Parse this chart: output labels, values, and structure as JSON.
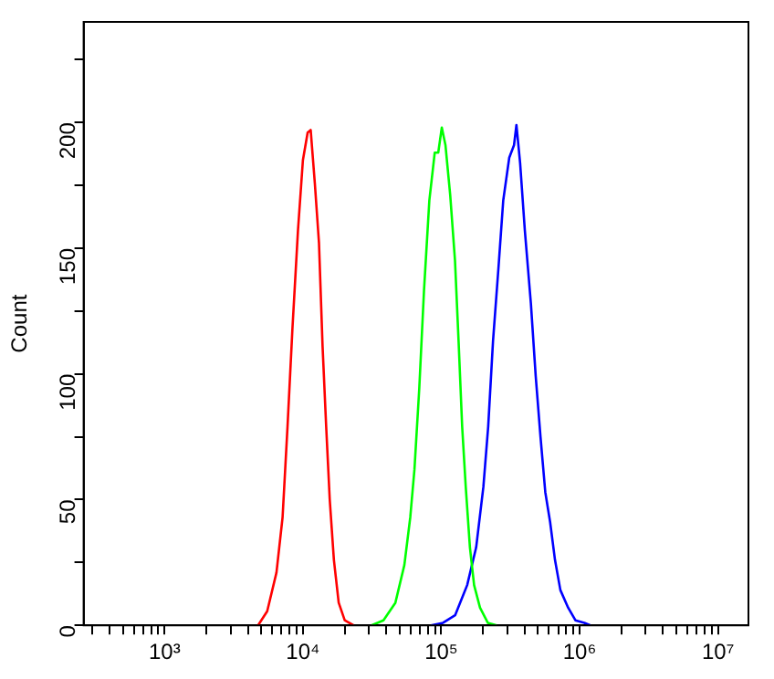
{
  "chart_data": {
    "type": "line",
    "ylabel": "Count",
    "log": "x",
    "grid": false,
    "legend": false,
    "marker": "none",
    "line_style": "solid",
    "xlim": [
      260,
      16600000
    ],
    "ylim": [
      0,
      240
    ],
    "xticks": [
      {
        "value": 300,
        "label": null
      },
      {
        "value": 400,
        "label": null
      },
      {
        "value": 500,
        "label": null
      },
      {
        "value": 600,
        "label": null
      },
      {
        "value": 700,
        "label": null
      },
      {
        "value": 800,
        "label": null
      },
      {
        "value": 900,
        "label": null
      },
      {
        "value": 1000,
        "label": "10³"
      },
      {
        "value": 2000,
        "label": null
      },
      {
        "value": 3000,
        "label": null
      },
      {
        "value": 4000,
        "label": null
      },
      {
        "value": 5000,
        "label": null
      },
      {
        "value": 6000,
        "label": null
      },
      {
        "value": 7000,
        "label": null
      },
      {
        "value": 8000,
        "label": null
      },
      {
        "value": 9000,
        "label": null
      },
      {
        "value": 10000,
        "label": "10⁴"
      },
      {
        "value": 20000,
        "label": null
      },
      {
        "value": 30000,
        "label": null
      },
      {
        "value": 40000,
        "label": null
      },
      {
        "value": 50000,
        "label": null
      },
      {
        "value": 60000,
        "label": null
      },
      {
        "value": 70000,
        "label": null
      },
      {
        "value": 80000,
        "label": null
      },
      {
        "value": 90000,
        "label": null
      },
      {
        "value": 100000,
        "label": "10⁵"
      },
      {
        "value": 200000,
        "label": null
      },
      {
        "value": 300000,
        "label": null
      },
      {
        "value": 400000,
        "label": null
      },
      {
        "value": 500000,
        "label": null
      },
      {
        "value": 600000,
        "label": null
      },
      {
        "value": 700000,
        "label": null
      },
      {
        "value": 800000,
        "label": null
      },
      {
        "value": 900000,
        "label": null
      },
      {
        "value": 1000000,
        "label": "10⁶"
      },
      {
        "value": 2000000,
        "label": null
      },
      {
        "value": 3000000,
        "label": null
      },
      {
        "value": 4000000,
        "label": null
      },
      {
        "value": 5000000,
        "label": null
      },
      {
        "value": 6000000,
        "label": null
      },
      {
        "value": 7000000,
        "label": null
      },
      {
        "value": 8000000,
        "label": null
      },
      {
        "value": 9000000,
        "label": null
      },
      {
        "value": 10000000,
        "label": "10⁷"
      }
    ],
    "yticks": [
      0,
      {
        "value": 25,
        "label": null
      },
      50,
      {
        "value": 75,
        "label": null
      },
      100,
      {
        "value": 125,
        "label": null
      },
      150,
      {
        "value": 175,
        "label": null
      },
      200,
      {
        "value": 225,
        "label": null
      }
    ],
    "series": [
      {
        "color": "#ff0000",
        "x": [
          4740,
          5520,
          6440,
          7130,
          7740,
          8400,
          9210,
          10000,
          10820,
          11380,
          12190,
          13070,
          13870,
          14730,
          15630,
          16750,
          18140,
          20050,
          23240
        ],
        "values": [
          0,
          5.6,
          21,
          43,
          79,
          118,
          157,
          185,
          196,
          197,
          176,
          152,
          111,
          79,
          50,
          26,
          9,
          2,
          0
        ]
      },
      {
        "color": "#00ff00",
        "x": [
          31300,
          38200,
          46600,
          54100,
          59700,
          64000,
          69300,
          75000,
          82000,
          89700,
          95100,
          100900,
          107200,
          116100,
          125700,
          133400,
          141600,
          150300,
          161100,
          172700,
          190600,
          216900,
          251600
        ],
        "values": [
          0,
          2,
          9,
          24,
          43,
          62,
          94,
          133,
          169,
          188,
          188,
          198,
          191,
          171,
          145,
          113,
          79,
          55,
          31,
          16,
          7,
          1,
          0
        ]
      },
      {
        "color": "#0000ff",
        "x": [
          84300,
          103000,
          125900,
          153900,
          178700,
          201500,
          218300,
          236600,
          258900,
          280500,
          310000,
          335700,
          349300,
          371300,
          401900,
          444400,
          481600,
          521400,
          564600,
          612200,
          663700,
          726100,
          826400,
          932500,
          1083000,
          1197000
        ],
        "values": [
          0,
          1,
          4,
          16,
          31,
          55,
          79,
          113,
          142,
          169,
          186,
          191,
          199,
          184,
          157,
          128,
          99,
          75,
          53,
          41,
          26,
          14,
          7,
          2,
          1,
          0
        ]
      }
    ]
  }
}
